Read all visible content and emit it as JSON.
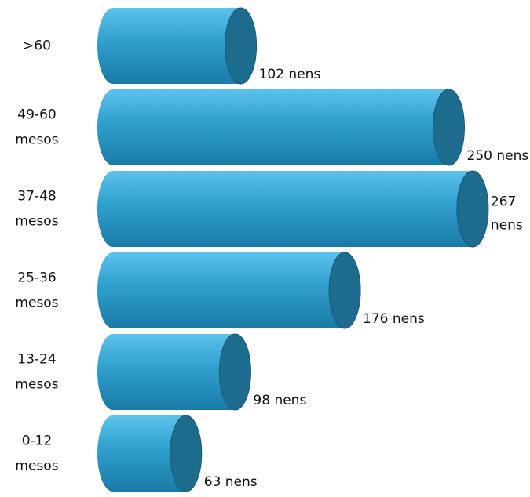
{
  "chart_data": {
    "type": "bar",
    "orientation": "horizontal",
    "style": "3d-cylinder",
    "title": "",
    "xlabel": "",
    "ylabel": "",
    "categories": [
      [
        ">60"
      ],
      [
        "49-60",
        "mesos"
      ],
      [
        "37-48",
        "mesos"
      ],
      [
        "25-36",
        "mesos"
      ],
      [
        "13-24",
        "mesos"
      ],
      [
        "0-12",
        "mesos"
      ]
    ],
    "values": [
      102,
      250,
      267,
      176,
      98,
      63
    ],
    "value_labels": [
      [
        "102 nens"
      ],
      [
        "250 nens"
      ],
      [
        "267",
        "nens"
      ],
      [
        "176 nens"
      ],
      [
        "98 nens"
      ],
      [
        "63 nens"
      ]
    ],
    "xlim": [
      0,
      267
    ],
    "grid": false,
    "legend": "none",
    "colors": {
      "body_top": "#5cc2ea",
      "body_mid": "#2f9fcd",
      "body_bottom": "#1a7aa6",
      "cap": "#1d6c8e",
      "cap_edge": "#155a78",
      "text": "#111111"
    }
  }
}
